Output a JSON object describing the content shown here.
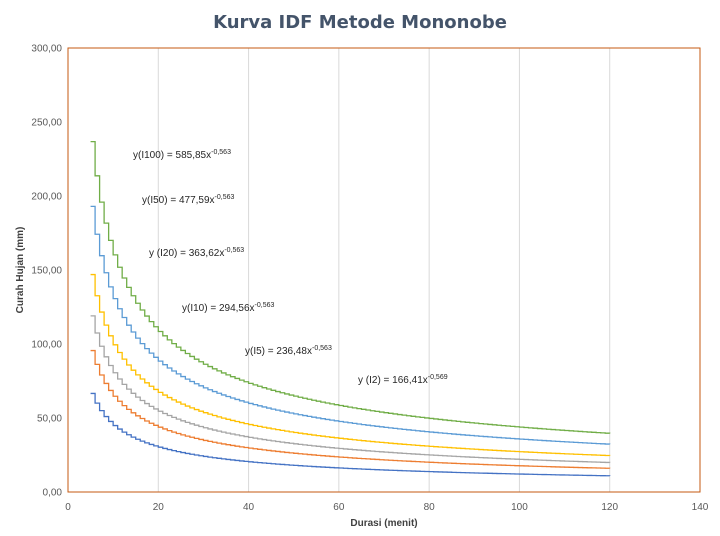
{
  "chart_data": {
    "type": "line",
    "title": "Kurva IDF Metode Mononobe",
    "xlabel": "Durasi (menit)",
    "ylabel": "Curah Hujan (mm)",
    "xlim": [
      0,
      140
    ],
    "ylim": [
      0,
      300
    ],
    "xticks": [
      "0",
      "20",
      "40",
      "60",
      "80",
      "100",
      "120",
      "140"
    ],
    "yticks": [
      "0,00",
      "50,00",
      "100,00",
      "150,00",
      "200,00",
      "250,00",
      "300,00"
    ],
    "grid": "vertical",
    "x_range": [
      5,
      120
    ],
    "series": [
      {
        "coef": 166.41,
        "exp": -0.569,
        "color": "#4472c4"
      },
      {
        "coef": 236.48,
        "exp": -0.563,
        "color": "#ed7d31"
      },
      {
        "coef": 294.56,
        "exp": -0.563,
        "color": "#a5a5a5"
      },
      {
        "coef": 363.62,
        "exp": -0.563,
        "color": "#ffc000"
      },
      {
        "coef": 477.59,
        "exp": -0.563,
        "color": "#5b9bd5"
      },
      {
        "coef": 585.85,
        "exp": -0.563,
        "color": "#70ad47"
      }
    ],
    "annotations": [
      {
        "base": "y(I100) = 585,85x",
        "sup": "-0,563"
      },
      {
        "base": "y(I50) = 477,59x",
        "sup": "-0,563"
      },
      {
        "base": "y (I20) = 363,62x",
        "sup": "-0,563"
      },
      {
        "base": "y(I10) = 294,56x",
        "sup": "-0,563"
      },
      {
        "base": "y(I5) = 236,48x",
        "sup": "-0,563"
      },
      {
        "base": "y (I2) = 166,41x",
        "sup": "-0,569"
      }
    ]
  }
}
